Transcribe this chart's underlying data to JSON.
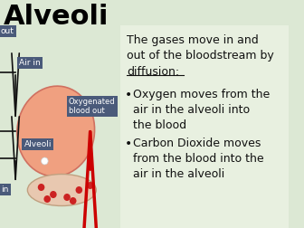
{
  "title": "Alveoli",
  "title_fontsize": 22,
  "title_color": "#000000",
  "bg_color": "#dce8d4",
  "right_bg": "#e8f0e0",
  "main_text": "The gases move in and\nout of the bloodstream by",
  "underline_text": "diffusion:",
  "bullet1_title": "Oxygen moves from the\nair in the alveoli into\nthe blood",
  "bullet2_title": "Carbon Dioxide moves\nfrom the blood into the\nair in the alveoli",
  "text_fontsize": 9,
  "label_color": "#ffffff",
  "label_bg": "#4a5a7a",
  "label_out": "out",
  "label_airin": "Air in",
  "label_oxy": "Oxygenated\nblood out",
  "label_alveoli": "Alveoli",
  "label_in": "in",
  "alveoli_color": "#f0a080",
  "blood_vessel_color": "#e8c8b0",
  "blood_dot_color": "#cc2222",
  "arrow_color": "#cc0000",
  "black_arrow_color": "#111111"
}
